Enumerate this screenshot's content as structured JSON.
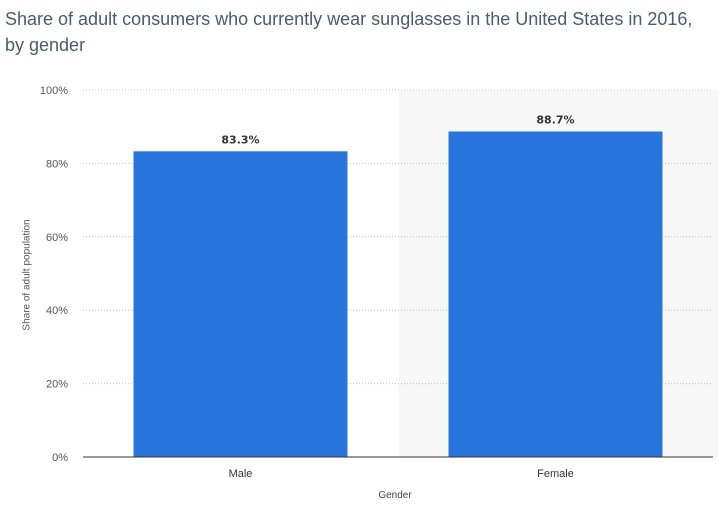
{
  "chart_data": {
    "type": "bar",
    "title": "Share of adult consumers who currently wear sunglasses in the United States in 2016, by gender",
    "xlabel": "Gender",
    "ylabel": "Share of adult population",
    "categories": [
      "Male",
      "Female"
    ],
    "values": [
      83.3,
      88.7
    ],
    "value_labels": [
      "83.3%",
      "88.7%"
    ],
    "ylim": [
      0,
      100
    ],
    "yticks": [
      0,
      20,
      40,
      60,
      80,
      100
    ],
    "ytick_labels": [
      "0%",
      "20%",
      "40%",
      "60%",
      "80%",
      "100%"
    ],
    "grid": true,
    "bar_color": "#2876dd",
    "highlight_band_color": "#f7f7f7"
  }
}
